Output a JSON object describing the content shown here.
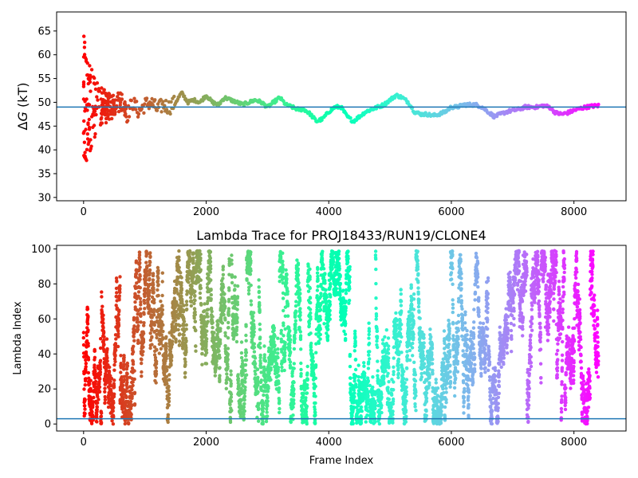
{
  "chart_data": [
    {
      "type": "scatter",
      "ylabel_delta": "Δ",
      "ylabel_var": "G",
      "ylabel_unit": "(kT)",
      "xlim": [
        -440,
        8850
      ],
      "ylim": [
        29.3,
        69
      ],
      "xticks": [
        0,
        2000,
        4000,
        6000,
        8000
      ],
      "yticks": [
        30,
        35,
        40,
        45,
        50,
        55,
        60,
        65
      ],
      "hline": 49,
      "colormap": "rainbow",
      "x_max": 8400,
      "trace": [
        [
          0,
          60
        ],
        [
          40,
          44
        ],
        [
          80,
          58
        ],
        [
          120,
          46
        ],
        [
          160,
          54
        ],
        [
          200,
          47
        ],
        [
          250,
          52
        ],
        [
          300,
          48
        ],
        [
          400,
          51
        ],
        [
          500,
          49
        ],
        [
          600,
          52
        ],
        [
          700,
          47
        ],
        [
          800,
          50
        ],
        [
          900,
          48
        ],
        [
          1000,
          49.5
        ],
        [
          1100,
          50
        ],
        [
          1200,
          48.5
        ],
        [
          1300,
          49.5
        ],
        [
          1400,
          49
        ],
        [
          1500,
          50
        ],
        [
          1600,
          52
        ],
        [
          1700,
          50
        ],
        [
          1800,
          50.5
        ],
        [
          1900,
          50
        ],
        [
          2000,
          51.5
        ],
        [
          2100,
          50
        ],
        [
          2200,
          49.5
        ],
        [
          2300,
          51
        ],
        [
          2400,
          50.5
        ],
        [
          2500,
          50
        ],
        [
          2600,
          49.5
        ],
        [
          2700,
          50
        ],
        [
          2800,
          50.5
        ],
        [
          2900,
          50
        ],
        [
          3000,
          49
        ],
        [
          3100,
          50
        ],
        [
          3200,
          51
        ],
        [
          3300,
          49.5
        ],
        [
          3400,
          49
        ],
        [
          3500,
          48.5
        ],
        [
          3600,
          48.5
        ],
        [
          3700,
          47.5
        ],
        [
          3800,
          46
        ],
        [
          3900,
          46.5
        ],
        [
          4000,
          48
        ],
        [
          4100,
          49
        ],
        [
          4200,
          49
        ],
        [
          4300,
          47
        ],
        [
          4400,
          46
        ],
        [
          4500,
          47
        ],
        [
          4600,
          48
        ],
        [
          4700,
          48.5
        ],
        [
          4800,
          49
        ],
        [
          4900,
          49.5
        ],
        [
          5000,
          50.5
        ],
        [
          5100,
          51.5
        ],
        [
          5200,
          51
        ],
        [
          5300,
          50
        ],
        [
          5400,
          48
        ],
        [
          5500,
          47.5
        ],
        [
          5600,
          47.5
        ],
        [
          5700,
          47.2
        ],
        [
          5800,
          47.5
        ],
        [
          5900,
          48
        ],
        [
          6000,
          49
        ],
        [
          6100,
          49
        ],
        [
          6200,
          49.5
        ],
        [
          6300,
          49.5
        ],
        [
          6400,
          49.5
        ],
        [
          6500,
          49
        ],
        [
          6600,
          48
        ],
        [
          6700,
          47
        ],
        [
          6800,
          47.5
        ],
        [
          6900,
          48
        ],
        [
          7000,
          48.3
        ],
        [
          7100,
          48.5
        ],
        [
          7200,
          49
        ],
        [
          7300,
          49
        ],
        [
          7400,
          49
        ],
        [
          7500,
          49.3
        ],
        [
          7600,
          49
        ],
        [
          7700,
          47.8
        ],
        [
          7800,
          47.5
        ],
        [
          7900,
          47.8
        ],
        [
          8000,
          48.3
        ],
        [
          8100,
          48.7
        ],
        [
          8200,
          49
        ],
        [
          8300,
          49.2
        ],
        [
          8400,
          49.3
        ]
      ]
    },
    {
      "type": "scatter",
      "title": "Lambda Trace for PROJ18433/RUN19/CLONE4",
      "xlabel": "Frame Index",
      "ylabel": "Lambda Index",
      "xlim": [
        -440,
        8850
      ],
      "ylim": [
        -4,
        102
      ],
      "xticks": [
        0,
        2000,
        4000,
        6000,
        8000
      ],
      "yticks": [
        0,
        20,
        40,
        60,
        80,
        100
      ],
      "hline": 3,
      "colormap": "rainbow",
      "x_max": 8400,
      "lambda_range": [
        0,
        99
      ],
      "n_points": 6500
    }
  ]
}
